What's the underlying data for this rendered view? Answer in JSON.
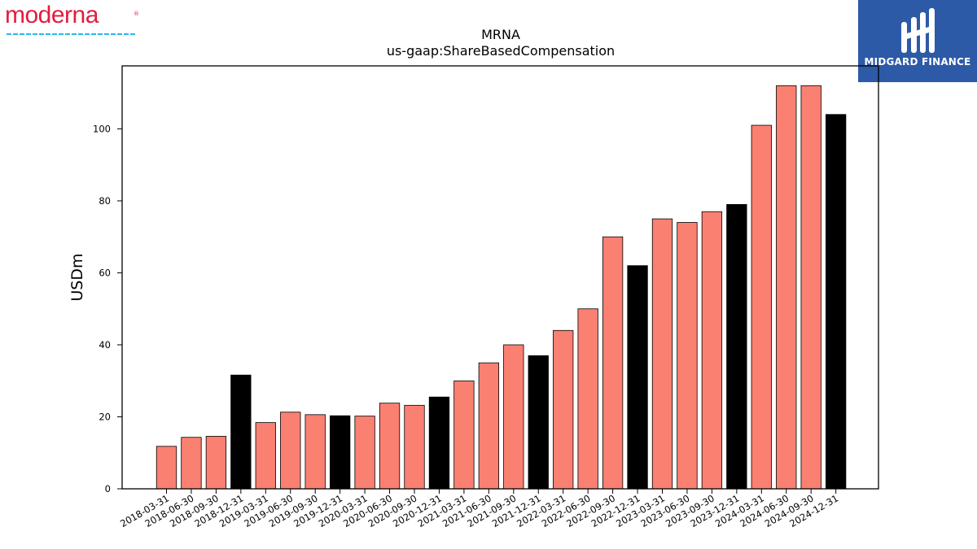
{
  "logo": {
    "text": "moderna",
    "color": "#e31c3d",
    "accent": "#2cb7e4"
  },
  "badge": {
    "text": "MIDGARD FINANCE",
    "bg": "#2d5aa7"
  },
  "colors": {
    "quarter_bar": "#fa8072",
    "year_end_bar": "#000000",
    "axis": "#000000"
  },
  "chart_data": {
    "type": "bar",
    "title": "MRNA",
    "subtitle": "us-gaap:ShareBasedCompensation",
    "xlabel": "",
    "ylabel": "USDm",
    "ylim": [
      0,
      117.5
    ],
    "yticks": [
      0,
      20,
      40,
      60,
      80,
      100
    ],
    "grid": false,
    "categories": [
      "2018-03-31",
      "2018-06-30",
      "2018-09-30",
      "2018-12-31",
      "2019-03-31",
      "2019-06-30",
      "2019-09-30",
      "2019-12-31",
      "2020-03-31",
      "2020-06-30",
      "2020-09-30",
      "2020-12-31",
      "2021-03-31",
      "2021-06-30",
      "2021-09-30",
      "2021-12-31",
      "2022-03-31",
      "2022-06-30",
      "2022-09-30",
      "2022-12-31",
      "2023-03-31",
      "2023-06-30",
      "2023-09-30",
      "2023-12-31",
      "2024-03-31",
      "2024-06-30",
      "2024-09-30",
      "2024-12-31"
    ],
    "values": [
      11.8,
      14.3,
      14.6,
      31.6,
      18.4,
      21.3,
      20.6,
      20.3,
      20.2,
      23.8,
      23.2,
      25.5,
      30.0,
      35.0,
      40.0,
      37.0,
      44.0,
      50.0,
      70.0,
      62.0,
      75.0,
      74.0,
      77.0,
      79.0,
      101.0,
      112.0,
      112.0,
      104.0
    ],
    "fiscal_year_end": [
      false,
      false,
      false,
      true,
      false,
      false,
      false,
      true,
      false,
      false,
      false,
      true,
      false,
      false,
      false,
      true,
      false,
      false,
      false,
      true,
      false,
      false,
      false,
      true,
      false,
      false,
      false,
      true
    ]
  }
}
